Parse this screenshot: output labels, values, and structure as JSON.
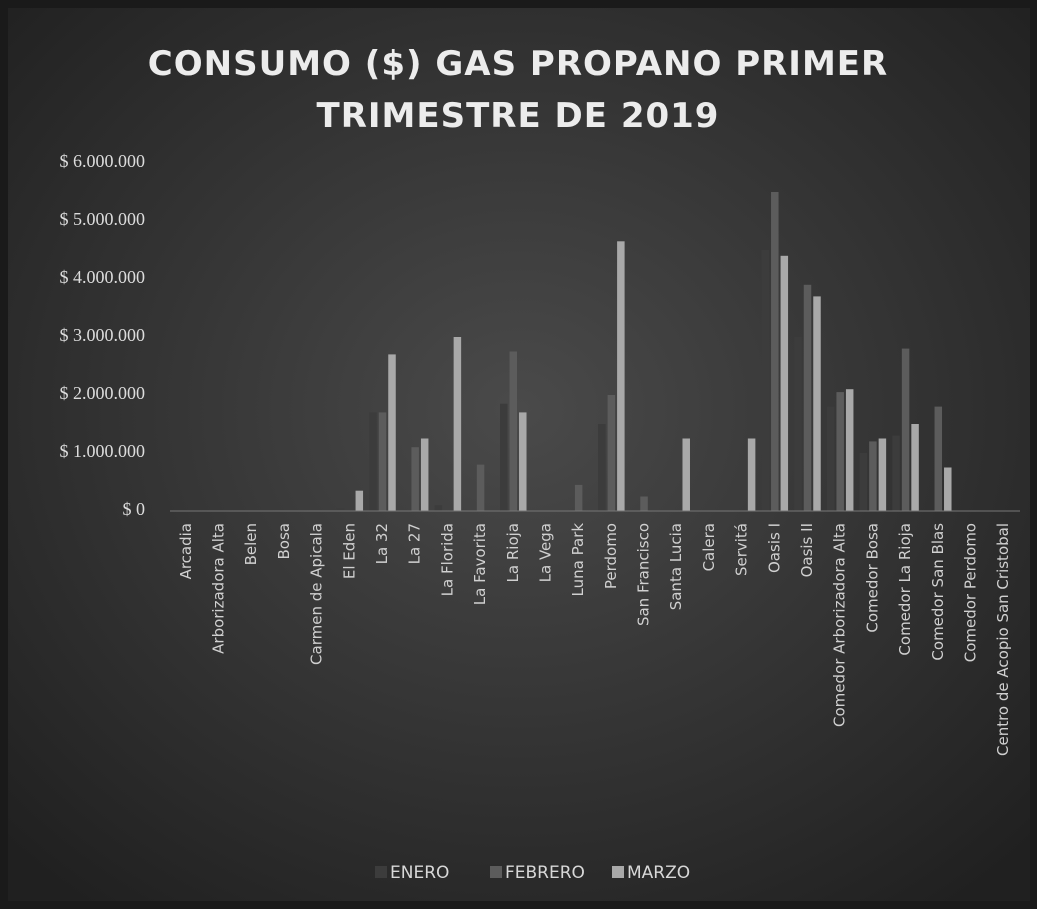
{
  "chart_data": {
    "type": "bar",
    "title": "CONSUMO ($) GAS PROPANO PRIMER TRIMESTRE DE 2019",
    "categories": [
      "Arcadia",
      "Arborizadora Alta",
      "Belen",
      "Bosa",
      "Carmen de Apicala",
      "El Eden",
      "La 32",
      "La 27",
      "La Florida",
      "La Favorita",
      "La Rioja",
      "La Vega",
      "Luna Park",
      "Perdomo",
      "San Francisco",
      "Santa Lucia",
      "Calera",
      "Servitá",
      "Oasis I",
      "Oasis II",
      "Comedor Arborizadora Alta",
      "Comedor Bosa",
      "Comedor La Rioja",
      "Comedor San Blas",
      "Comedor Perdomo",
      "Centro de Acopio San Cristobal"
    ],
    "series": [
      {
        "name": "ENERO",
        "color": "#3c3c3c",
        "values": [
          0,
          0,
          0,
          0,
          0,
          50000,
          1700000,
          0,
          100000,
          0,
          1850000,
          0,
          0,
          1500000,
          0,
          0,
          0,
          0,
          4500000,
          3000000,
          1800000,
          1000000,
          1300000,
          0,
          0,
          0
        ]
      },
      {
        "name": "FEBRERO",
        "color": "#5c5c5c",
        "values": [
          0,
          0,
          0,
          0,
          0,
          0,
          1700000,
          1100000,
          0,
          800000,
          2750000,
          0,
          450000,
          2000000,
          250000,
          0,
          0,
          0,
          5500000,
          3900000,
          2050000,
          1200000,
          2800000,
          1800000,
          0,
          0
        ]
      },
      {
        "name": "MARZO",
        "color": "#a9a9a9",
        "values": [
          0,
          0,
          0,
          0,
          0,
          350000,
          2700000,
          1250000,
          3000000,
          0,
          1700000,
          0,
          0,
          4650000,
          0,
          1250000,
          0,
          1250000,
          4400000,
          3700000,
          2100000,
          1250000,
          1500000,
          750000,
          0,
          0
        ]
      }
    ],
    "ylim": [
      0,
      6000000
    ],
    "yticks": [
      {
        "value": 0,
        "label": "$ 0"
      },
      {
        "value": 1000000,
        "label": "$ 1.000.000"
      },
      {
        "value": 2000000,
        "label": "$ 2.000.000"
      },
      {
        "value": 3000000,
        "label": "$ 3.000.000"
      },
      {
        "value": 4000000,
        "label": "$ 4.000.000"
      },
      {
        "value": 5000000,
        "label": "$ 5.000.000"
      },
      {
        "value": 6000000,
        "label": "$ 6.000.000"
      }
    ],
    "grid": false,
    "legend": "bottom"
  }
}
